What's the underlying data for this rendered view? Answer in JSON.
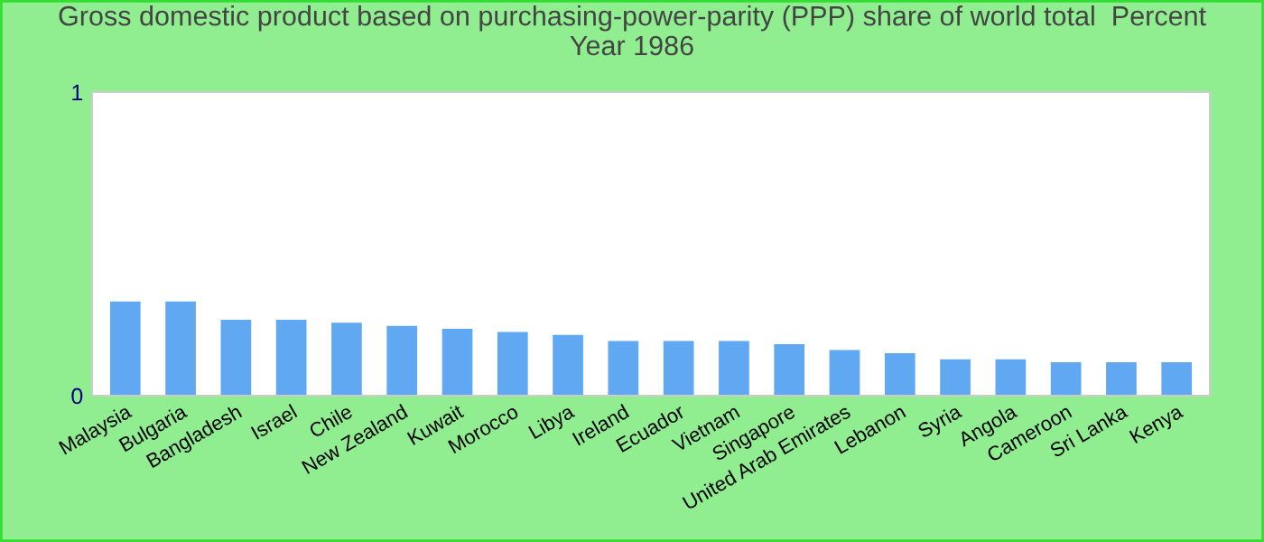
{
  "chart_data": {
    "type": "bar",
    "title": "Gross domestic product based on purchasing-power-parity (PPP) share of world total  Percent\nYear 1986",
    "categories": [
      "Malaysia",
      "Bulgaria",
      "Bangladesh",
      "Israel",
      "Chile",
      "New Zealand",
      "Kuwait",
      "Morocco",
      "Libya",
      "Ireland",
      "Ecuador",
      "Vietnam",
      "Singapore",
      "United Arab Emirates",
      "Lebanon",
      "Syria",
      "Angola",
      "Cameroon",
      "Sri Lanka",
      "Kenya"
    ],
    "values": [
      0.31,
      0.31,
      0.25,
      0.25,
      0.24,
      0.23,
      0.22,
      0.21,
      0.2,
      0.18,
      0.18,
      0.18,
      0.17,
      0.15,
      0.14,
      0.12,
      0.12,
      0.11,
      0.11,
      0.11
    ],
    "color": "#60a8f2",
    "ylim": [
      0,
      1
    ],
    "yticks": [
      0,
      1
    ],
    "grid": false,
    "legend": false
  }
}
